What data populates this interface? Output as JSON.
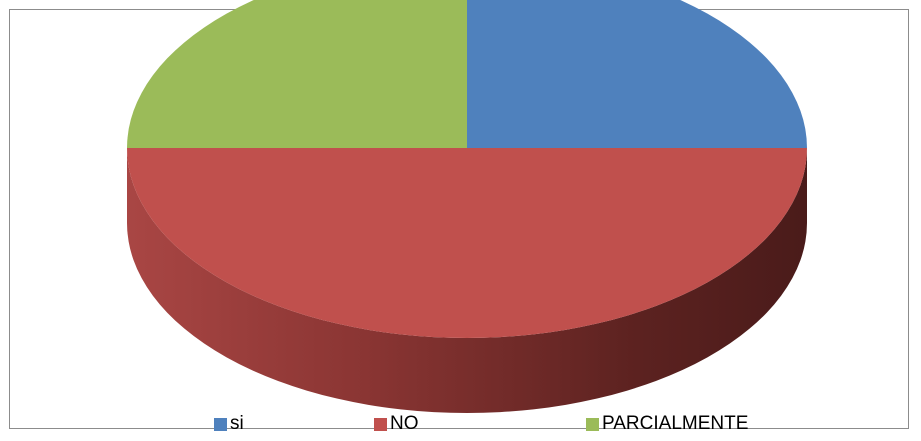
{
  "chart_data": {
    "type": "pie",
    "style": "3d",
    "title": "",
    "categories": [
      "si",
      "NO",
      "PARCIALMENTE"
    ],
    "values": [
      25,
      50,
      25
    ],
    "colors": [
      "#4f81bd",
      "#c0504d",
      "#9bbb59"
    ],
    "legend": {
      "position": "bottom",
      "entries": [
        "si",
        "NO",
        "PARCIALMENTE"
      ]
    }
  }
}
